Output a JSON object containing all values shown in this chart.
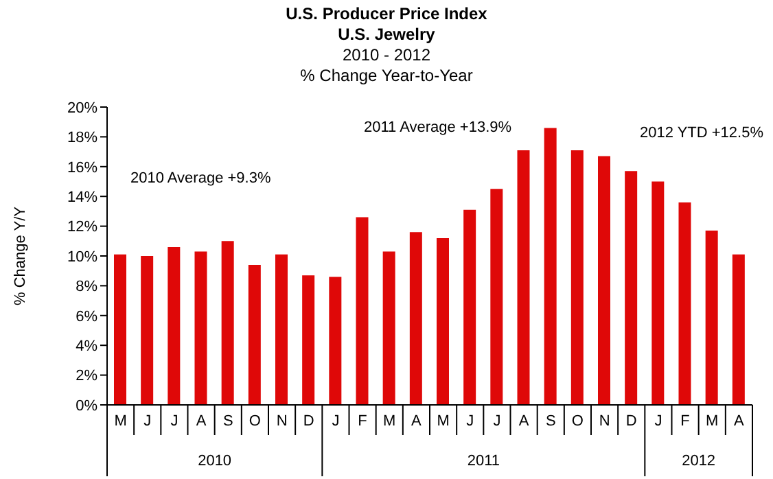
{
  "chart_data": {
    "type": "bar",
    "title": "U.S. Producer Price Index\nU.S. Jewelry",
    "subtitle": "2010 - 2012\n% Change Year-to-Year",
    "ylabel": "% Change Y/Y",
    "categories": [
      "M",
      "J",
      "J",
      "A",
      "S",
      "O",
      "N",
      "D",
      "J",
      "F",
      "M",
      "A",
      "M",
      "J",
      "J",
      "A",
      "S",
      "O",
      "N",
      "D",
      "J",
      "F",
      "M",
      "A"
    ],
    "values": [
      10.1,
      10.0,
      10.6,
      10.3,
      11.0,
      9.4,
      10.1,
      8.7,
      8.6,
      12.6,
      10.3,
      11.6,
      11.2,
      13.1,
      14.5,
      17.1,
      18.6,
      17.1,
      16.7,
      15.7,
      15.0,
      13.6,
      11.7,
      10.1
    ],
    "color": "#df0808",
    "ylim": [
      0,
      20
    ],
    "yticks": [
      {
        "value": 0,
        "label": "0%"
      },
      {
        "value": 2,
        "label": "2%"
      },
      {
        "value": 4,
        "label": "4%"
      },
      {
        "value": 6,
        "label": "6%"
      },
      {
        "value": 8,
        "label": "8%"
      },
      {
        "value": 10,
        "label": "10%"
      },
      {
        "value": 12,
        "label": "12%"
      },
      {
        "value": 14,
        "label": "14%"
      },
      {
        "value": 16,
        "label": "16%"
      },
      {
        "value": 18,
        "label": "18%"
      },
      {
        "value": 20,
        "label": "20%"
      }
    ],
    "annotations": [
      "2010 Average +9.3%",
      "2011 Average +13.9%",
      "2012 YTD +12.5%",
      "2010",
      "2011",
      "2012"
    ]
  }
}
